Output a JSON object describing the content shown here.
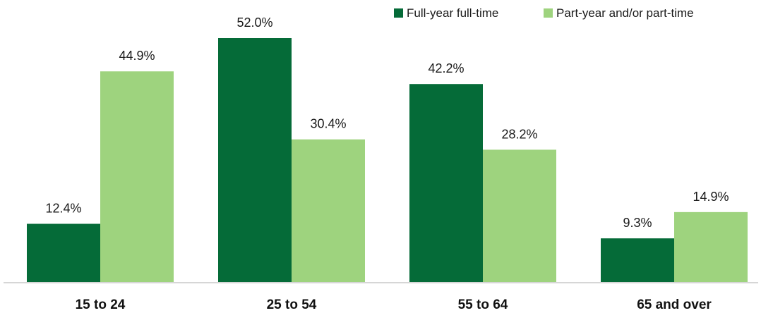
{
  "chart_data": {
    "type": "bar",
    "categories": [
      "15 to 24",
      "25 to 54",
      "55 to 64",
      "65 and over"
    ],
    "series": [
      {
        "name": "Full-year full-time",
        "values": [
          12.4,
          52.0,
          42.2,
          9.3
        ],
        "labels": [
          "12.4%",
          "52.0%",
          "42.2%",
          "9.3%"
        ],
        "color": "#056b38"
      },
      {
        "name": "Part-year and/or part-time",
        "values": [
          44.9,
          30.4,
          28.2,
          14.9
        ],
        "labels": [
          "44.9%",
          "30.4%",
          "28.2%",
          "14.9%"
        ],
        "color": "#9ed37e"
      }
    ],
    "ylim": [
      0,
      60
    ],
    "grid": false,
    "legend_position": "top-right",
    "axis_color": "#c8c8c8"
  }
}
